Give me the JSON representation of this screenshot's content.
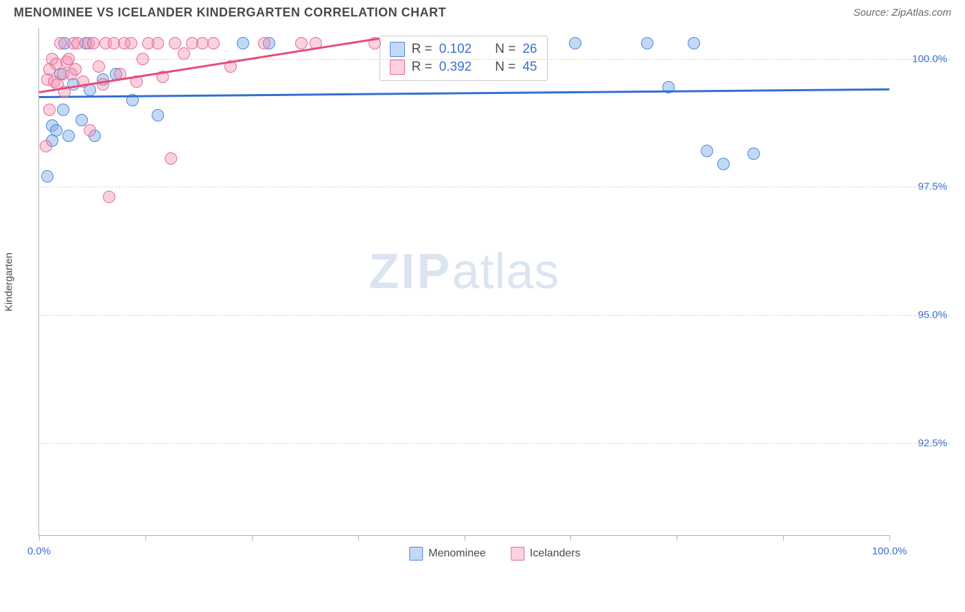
{
  "header": {
    "title": "MENOMINEE VS ICELANDER KINDERGARTEN CORRELATION CHART",
    "source_prefix": "Source: ",
    "source_name": "ZipAtlas.com"
  },
  "watermark": {
    "zip": "ZIP",
    "atlas": "atlas"
  },
  "chart": {
    "type": "scatter",
    "y_axis_label": "Kindergarten",
    "x_domain": [
      0,
      100
    ],
    "y_domain": [
      90.7,
      100.6
    ],
    "y_ticks": [
      {
        "value": 100.0,
        "label": "100.0%"
      },
      {
        "value": 97.5,
        "label": "97.5%"
      },
      {
        "value": 95.0,
        "label": "95.0%"
      },
      {
        "value": 92.5,
        "label": "92.5%"
      }
    ],
    "x_ticks": [
      {
        "value": 0,
        "label": "0.0%"
      },
      {
        "value": 12.5
      },
      {
        "value": 25
      },
      {
        "value": 37.5
      },
      {
        "value": 50
      },
      {
        "value": 62.5
      },
      {
        "value": 75
      },
      {
        "value": 87.5
      },
      {
        "value": 100,
        "label": "100.0%"
      }
    ],
    "marker_radius": 9,
    "marker_border_width": 1.2,
    "series": [
      {
        "key": "menominee",
        "label": "Menominee",
        "fill": "rgba(120,170,235,0.45)",
        "stroke": "#4f84d6",
        "trend_color": "#2f6fd0",
        "R": "0.102",
        "N": "26",
        "trend": {
          "x1": 0,
          "y1": 99.25,
          "x2": 100,
          "y2": 99.4
        },
        "points": [
          [
            1.0,
            97.7
          ],
          [
            1.5,
            98.4
          ],
          [
            1.5,
            98.7
          ],
          [
            2.8,
            99.0
          ],
          [
            2.0,
            98.6
          ],
          [
            2.5,
            99.7
          ],
          [
            3.0,
            100.3
          ],
          [
            3.5,
            98.5
          ],
          [
            4.0,
            99.5
          ],
          [
            5.0,
            98.8
          ],
          [
            5.5,
            100.3
          ],
          [
            6.0,
            99.4
          ],
          [
            6.5,
            98.5
          ],
          [
            7.5,
            99.6
          ],
          [
            9.0,
            99.7
          ],
          [
            11.0,
            99.2
          ],
          [
            14.0,
            98.9
          ],
          [
            24.0,
            100.3
          ],
          [
            27.0,
            100.3
          ],
          [
            63.0,
            100.3
          ],
          [
            71.5,
            100.3
          ],
          [
            74.0,
            99.45
          ],
          [
            77.0,
            100.3
          ],
          [
            78.5,
            98.2
          ],
          [
            80.5,
            97.95
          ],
          [
            84.0,
            98.15
          ]
        ]
      },
      {
        "key": "icelanders",
        "label": "Icelanders",
        "fill": "rgba(244,140,175,0.40)",
        "stroke": "#e06a94",
        "trend_color": "#e54b7d",
        "R": "0.392",
        "N": "45",
        "trend": {
          "x1": 0,
          "y1": 99.35,
          "x2": 40,
          "y2": 100.4
        },
        "points": [
          [
            0.8,
            98.3
          ],
          [
            1.0,
            99.6
          ],
          [
            1.2,
            99.0
          ],
          [
            1.2,
            99.8
          ],
          [
            1.5,
            100.0
          ],
          [
            1.8,
            99.55
          ],
          [
            2.0,
            99.9
          ],
          [
            2.2,
            99.5
          ],
          [
            2.5,
            100.3
          ],
          [
            2.8,
            99.7
          ],
          [
            3.0,
            99.35
          ],
          [
            3.2,
            99.95
          ],
          [
            3.5,
            100.0
          ],
          [
            3.8,
            99.7
          ],
          [
            4.0,
            100.3
          ],
          [
            4.3,
            99.8
          ],
          [
            4.5,
            100.3
          ],
          [
            5.2,
            99.55
          ],
          [
            5.8,
            100.3
          ],
          [
            6.0,
            98.6
          ],
          [
            6.4,
            100.3
          ],
          [
            7.0,
            99.85
          ],
          [
            7.5,
            99.5
          ],
          [
            7.8,
            100.3
          ],
          [
            8.2,
            97.3
          ],
          [
            8.8,
            100.3
          ],
          [
            9.5,
            99.7
          ],
          [
            10.0,
            100.3
          ],
          [
            10.8,
            100.3
          ],
          [
            11.5,
            99.55
          ],
          [
            12.2,
            100.0
          ],
          [
            12.8,
            100.3
          ],
          [
            14.0,
            100.3
          ],
          [
            14.5,
            99.65
          ],
          [
            15.5,
            98.05
          ],
          [
            16.0,
            100.3
          ],
          [
            17.0,
            100.1
          ],
          [
            18.0,
            100.3
          ],
          [
            19.2,
            100.3
          ],
          [
            20.5,
            100.3
          ],
          [
            22.5,
            99.85
          ],
          [
            26.5,
            100.3
          ],
          [
            30.8,
            100.3
          ],
          [
            32.5,
            100.3
          ],
          [
            39.5,
            100.3
          ]
        ]
      }
    ],
    "legend_box": {
      "r_prefix": "R = ",
      "n_prefix": "N = "
    },
    "colors": {
      "grid": "#d8d8d8",
      "axis": "#b0b0b0",
      "tick_text": "#3b6fc9",
      "bg": "#ffffff"
    }
  }
}
